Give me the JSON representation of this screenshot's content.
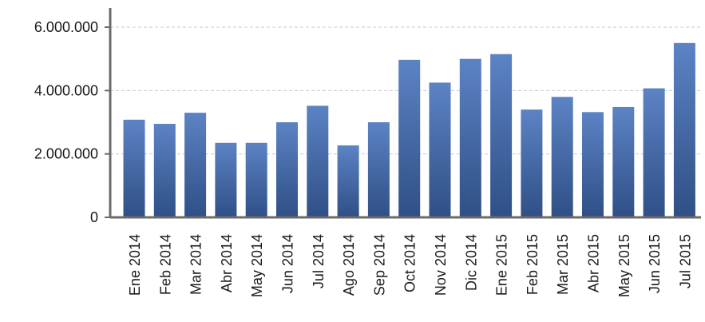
{
  "chart_data": {
    "type": "bar",
    "title": "",
    "xlabel": "",
    "ylabel": "",
    "ylim": [
      0,
      6500000
    ],
    "yticks": [
      0,
      2000000,
      4000000,
      6000000
    ],
    "ytick_labels": [
      "0",
      "2.000.000",
      "4.000.000",
      "6.000.000"
    ],
    "grid": true,
    "legend": "none",
    "bar_color_top": "#5c83c4",
    "bar_color_bottom": "#2f4f86",
    "categories": [
      "Ene 2014",
      "Feb 2014",
      "Mar 2014",
      "Abr 2014",
      "May 2014",
      "Jun 2014",
      "Jul 2014",
      "Ago 2014",
      "Sep 2014",
      "Oct 2014",
      "Nov 2014",
      "Dic 2014",
      "Ene 2015",
      "Feb 2015",
      "Mar 2015",
      "Abr 2015",
      "May 2015",
      "Jun 2015",
      "Jul 2015"
    ],
    "values": [
      3080000,
      2950000,
      3300000,
      2350000,
      2350000,
      3000000,
      3520000,
      2270000,
      3000000,
      4970000,
      4250000,
      5000000,
      5150000,
      3400000,
      3800000,
      3320000,
      3480000,
      4070000,
      5500000
    ]
  }
}
